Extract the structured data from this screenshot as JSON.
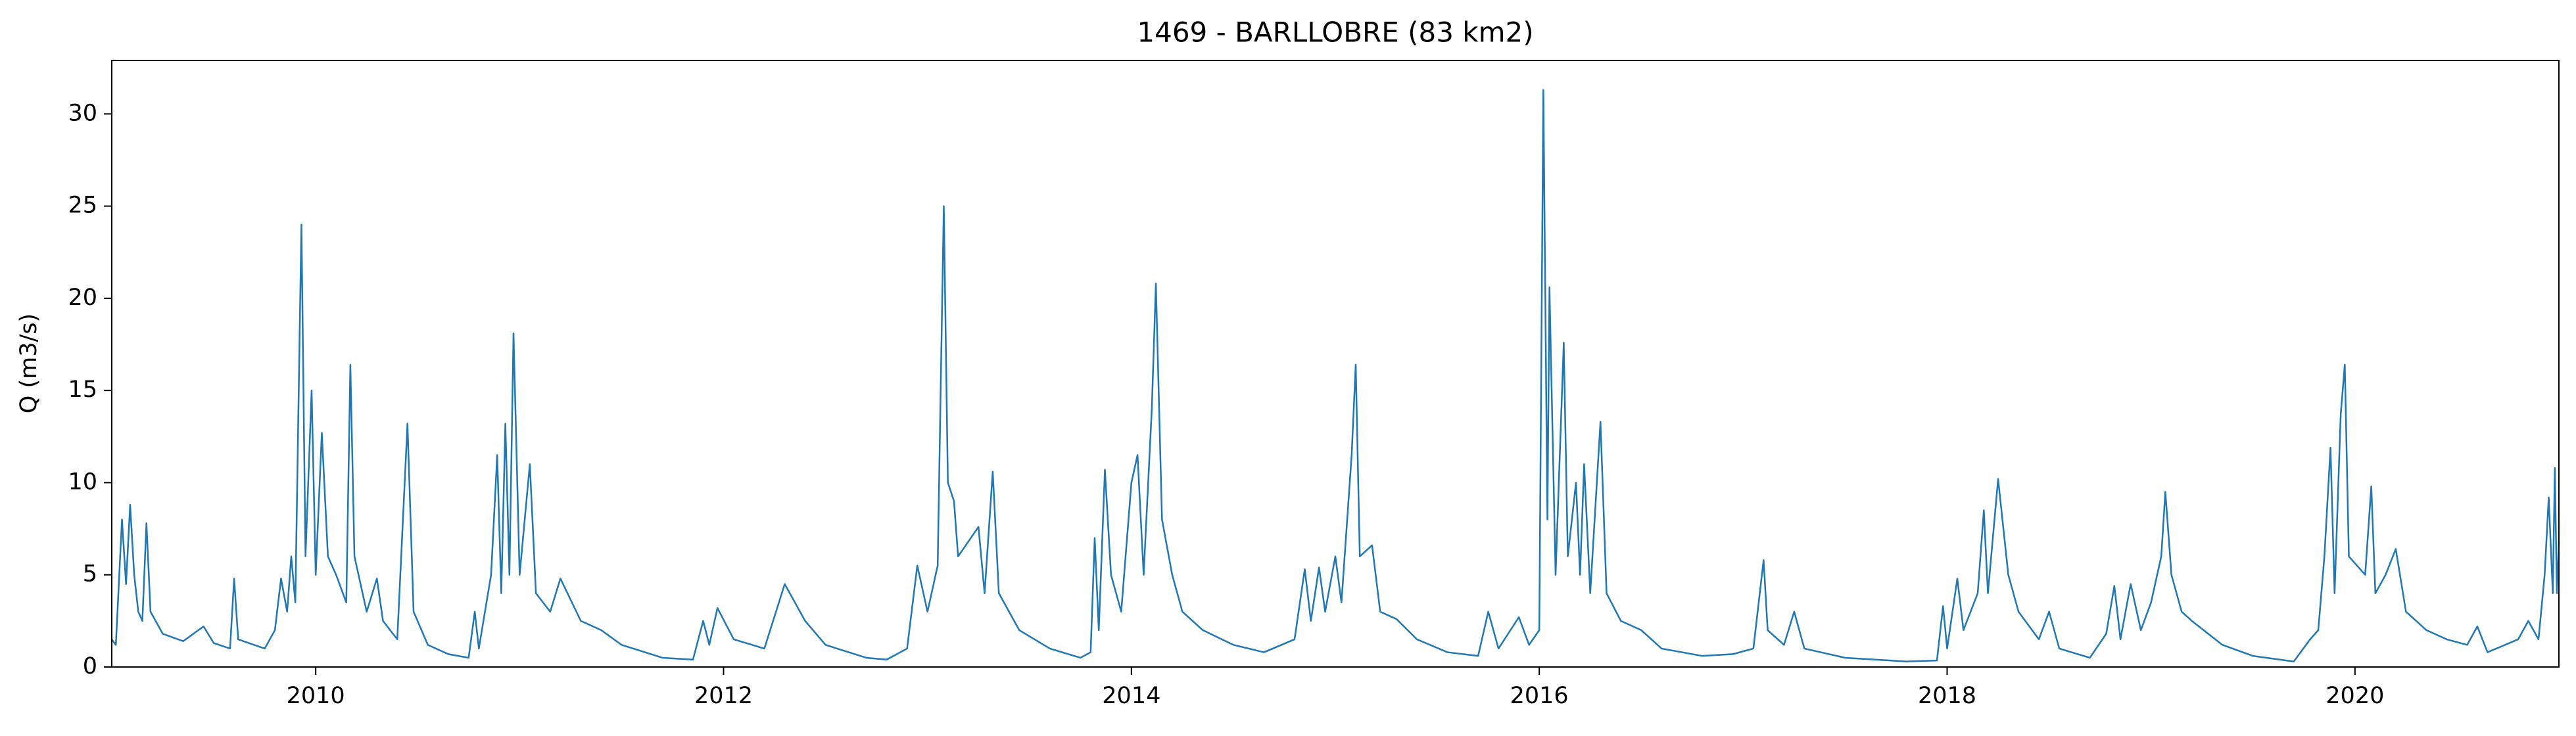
{
  "chart_data": {
    "type": "line",
    "title": "1469 - BARLLOBRE (83 km2)",
    "y_label": "Q (m3/s)",
    "x": [
      2009.0,
      2009.02,
      2009.05,
      2009.07,
      2009.09,
      2009.11,
      2009.13,
      2009.15,
      2009.17,
      2009.19,
      2009.25,
      2009.35,
      2009.45,
      2009.5,
      2009.58,
      2009.6,
      2009.62,
      2009.75,
      2009.8,
      2009.83,
      2009.86,
      2009.88,
      2009.9,
      2009.93,
      2009.95,
      2009.98,
      2010.0,
      2010.03,
      2010.06,
      2010.1,
      2010.15,
      2010.17,
      2010.19,
      2010.25,
      2010.3,
      2010.33,
      2010.4,
      2010.45,
      2010.48,
      2010.55,
      2010.65,
      2010.75,
      2010.78,
      2010.8,
      2010.86,
      2010.89,
      2010.91,
      2010.93,
      2010.95,
      2010.97,
      2011.0,
      2011.05,
      2011.08,
      2011.15,
      2011.2,
      2011.3,
      2011.4,
      2011.5,
      2011.7,
      2011.85,
      2011.9,
      2011.93,
      2011.97,
      2012.05,
      2012.2,
      2012.3,
      2012.35,
      2012.4,
      2012.5,
      2012.7,
      2012.8,
      2012.9,
      2012.95,
      2013.0,
      2013.05,
      2013.08,
      2013.1,
      2013.13,
      2013.15,
      2013.25,
      2013.28,
      2013.32,
      2013.35,
      2013.45,
      2013.6,
      2013.75,
      2013.8,
      2013.82,
      2013.84,
      2013.87,
      2013.9,
      2013.95,
      2014.0,
      2014.03,
      2014.06,
      2014.1,
      2014.12,
      2014.15,
      2014.2,
      2014.25,
      2014.35,
      2014.5,
      2014.65,
      2014.8,
      2014.85,
      2014.88,
      2014.92,
      2014.95,
      2015.0,
      2015.03,
      2015.08,
      2015.1,
      2015.12,
      2015.18,
      2015.22,
      2015.3,
      2015.4,
      2015.55,
      2015.7,
      2015.75,
      2015.8,
      2015.9,
      2015.95,
      2016.0,
      2016.02,
      2016.04,
      2016.05,
      2016.08,
      2016.12,
      2016.14,
      2016.18,
      2016.2,
      2016.22,
      2016.25,
      2016.3,
      2016.33,
      2016.4,
      2016.5,
      2016.6,
      2016.8,
      2016.95,
      2017.05,
      2017.1,
      2017.12,
      2017.2,
      2017.25,
      2017.3,
      2017.5,
      2017.8,
      2017.95,
      2017.98,
      2018.0,
      2018.05,
      2018.08,
      2018.15,
      2018.18,
      2018.2,
      2018.25,
      2018.3,
      2018.35,
      2018.45,
      2018.5,
      2018.55,
      2018.7,
      2018.78,
      2018.82,
      2018.85,
      2018.9,
      2018.95,
      2019.0,
      2019.05,
      2019.07,
      2019.1,
      2019.15,
      2019.2,
      2019.35,
      2019.5,
      2019.7,
      2019.78,
      2019.82,
      2019.85,
      2019.88,
      2019.9,
      2019.93,
      2019.95,
      2019.97,
      2020.05,
      2020.08,
      2020.1,
      2020.15,
      2020.2,
      2020.25,
      2020.35,
      2020.45,
      2020.55,
      2020.6,
      2020.65,
      2020.8,
      2020.85,
      2020.9,
      2020.93,
      2020.95,
      2020.97,
      2020.98,
      2020.99,
      2021.0
    ],
    "series": [
      {
        "name": "Q",
        "color": "#1f77b4",
        "values": [
          1.5,
          1.2,
          8.0,
          4.5,
          8.8,
          5,
          3,
          2.5,
          7.8,
          3,
          1.8,
          1.4,
          2.2,
          1.3,
          1.0,
          4.8,
          1.5,
          1.0,
          2.0,
          4.8,
          3,
          6,
          3.5,
          24.0,
          6,
          15.0,
          5,
          12.7,
          6,
          5,
          3.5,
          16.4,
          6,
          3,
          4.8,
          2.5,
          1.5,
          13.2,
          3,
          1.2,
          0.7,
          0.5,
          3.0,
          1.0,
          5,
          11.5,
          4,
          13.2,
          5,
          18.1,
          5,
          11,
          4,
          3,
          4.8,
          2.5,
          2,
          1.2,
          0.5,
          0.4,
          2.5,
          1.2,
          3.2,
          1.5,
          1.0,
          4.5,
          3.5,
          2.5,
          1.2,
          0.5,
          0.4,
          1.0,
          5.5,
          3,
          5.5,
          25.0,
          10,
          9,
          6,
          7.6,
          4,
          10.6,
          4,
          2,
          1.0,
          0.5,
          0.8,
          7,
          2,
          10.7,
          5,
          3,
          10,
          11.5,
          5,
          14,
          20.8,
          8,
          5,
          3,
          2.0,
          1.2,
          0.8,
          1.5,
          5.3,
          2.5,
          5.4,
          3,
          6,
          3.5,
          11.5,
          16.4,
          6,
          6.6,
          3,
          2.6,
          1.5,
          0.8,
          0.6,
          3.0,
          1.0,
          2.7,
          1.2,
          2,
          31.3,
          8,
          20.6,
          5,
          17.6,
          6,
          10,
          5,
          11,
          4,
          13.3,
          4,
          2.5,
          2,
          1.0,
          0.6,
          0.7,
          1.0,
          5.8,
          2,
          1.2,
          3.0,
          1.0,
          0.5,
          0.3,
          0.35,
          3.3,
          1.0,
          4.8,
          2,
          4,
          8.5,
          4,
          10.2,
          5,
          3,
          1.5,
          3.0,
          1.0,
          0.5,
          1.8,
          4.4,
          1.5,
          4.5,
          2,
          3.5,
          6,
          9.5,
          5,
          3,
          2.5,
          1.2,
          0.6,
          0.3,
          1.5,
          2,
          6,
          11.9,
          4,
          13.7,
          16.4,
          6,
          5,
          9.8,
          4,
          5,
          6.4,
          3,
          2,
          1.5,
          1.2,
          2.2,
          0.8,
          1.5,
          2.5,
          1.5,
          5,
          9.2,
          4,
          10.8,
          4,
          6.8
        ]
      }
    ],
    "xlim": [
      2009.0,
      2021.0
    ],
    "ylim": [
      0,
      32.9
    ],
    "xticks": [
      2010,
      2012,
      2014,
      2016,
      2018,
      2020
    ],
    "yticks": [
      0,
      5,
      10,
      15,
      20,
      25,
      30
    ]
  }
}
